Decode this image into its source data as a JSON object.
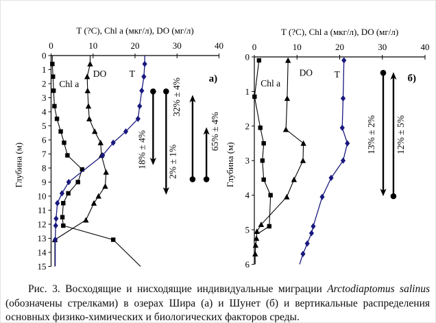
{
  "figure": {
    "caption": {
      "parts": [
        {
          "text": "Рис. 3. Восходящие и нисходящие индивидуальные миграции ",
          "italic": false
        },
        {
          "text": "Arctodiaptomus salinus",
          "italic": true
        },
        {
          "text": " (обозначены стрелками) в озерах Шира (а) и Шунет (б) и вертикальные распределения основных физико-химических и биологических факторов среды.",
          "italic": false
        }
      ]
    }
  },
  "chart_data": [
    {
      "type": "line",
      "panel": "a",
      "panel_label": {
        "text": "а)",
        "x": 38.6,
        "depth": 1.85
      },
      "title": "Т (?С), Chl a (мкг/л), DO (мг/л)",
      "ylabel": "Глубина (м)",
      "xlim": [
        0,
        40
      ],
      "xticks": [
        0,
        10,
        20,
        30,
        40
      ],
      "ylim": [
        0,
        15
      ],
      "yticks": [
        0,
        1,
        2,
        3,
        4,
        5,
        6,
        7,
        8,
        9,
        10,
        11,
        12,
        13,
        14,
        15
      ],
      "point_format": "[depth_m, value]",
      "series": [
        {
          "name": "Chl a",
          "marker": "square",
          "color": "#000000",
          "label_x": 4.3,
          "label_depth": 2.25,
          "lead": [
            [
              0,
              0.3
            ]
          ],
          "points": [
            [
              0.6,
              0.3
            ],
            [
              1.5,
              0.45
            ],
            [
              2.5,
              0.6
            ],
            [
              3.6,
              0.8
            ],
            [
              4.5,
              1.4
            ],
            [
              5.4,
              2.3
            ],
            [
              6.2,
              3.1
            ],
            [
              7.1,
              3.9
            ],
            [
              8.1,
              7.4
            ],
            [
              9.0,
              6.4
            ],
            [
              9.8,
              4.1
            ],
            [
              10.5,
              2.9
            ],
            [
              11.5,
              2.7
            ],
            [
              12.1,
              2.9
            ],
            [
              13.1,
              14.8
            ]
          ],
          "tail": [
            [
              15,
              21.3
            ]
          ]
        },
        {
          "name": "DO",
          "marker": "triangle",
          "color": "#000000",
          "label_x": 11.6,
          "label_depth": 1.5,
          "lead": [
            [
              0,
              9.3
            ]
          ],
          "points": [
            [
              0.6,
              9.3
            ],
            [
              1.5,
              8.6
            ],
            [
              2.5,
              8.7
            ],
            [
              3.6,
              8.9
            ],
            [
              4.5,
              9.1
            ],
            [
              5.4,
              10.4
            ],
            [
              6.2,
              11.8
            ],
            [
              7.1,
              12.0
            ],
            [
              8.3,
              13.1
            ],
            [
              9.3,
              12.9
            ],
            [
              10.0,
              11.3
            ],
            [
              10.5,
              10.2
            ],
            [
              11.7,
              8.3
            ],
            [
              13.1,
              0.9
            ]
          ],
          "tail": [
            [
              15,
              0.9
            ]
          ]
        },
        {
          "name": "T",
          "marker": "diamond",
          "color": "#18187e",
          "label_x": 19.3,
          "label_depth": 1.5,
          "lead": [
            [
              0,
              22.3
            ]
          ],
          "points": [
            [
              0.6,
              22.3
            ],
            [
              1.5,
              22.1
            ],
            [
              2.5,
              21.6
            ],
            [
              3.6,
              21.1
            ],
            [
              4.5,
              20.7
            ],
            [
              5.4,
              17.8
            ],
            [
              6.2,
              14.8
            ],
            [
              7.1,
              12.3
            ],
            [
              9.0,
              4.2
            ],
            [
              9.8,
              2.6
            ],
            [
              10.5,
              1.5
            ],
            [
              11.6,
              1.2
            ],
            [
              12.1,
              1.1
            ],
            [
              13.1,
              1.0
            ]
          ],
          "tail": [
            [
              15,
              1.0
            ]
          ]
        }
      ],
      "arrows": [
        {
          "label": "18% ± 4%",
          "direction": "down",
          "x_value": 24.3,
          "depth_start": 2.55,
          "depth_end": 7.8,
          "label_side": "left",
          "label_depth": 6.7
        },
        {
          "label": "2% ± 1%",
          "direction": "down",
          "x_value": 27.4,
          "depth_start": 2.55,
          "depth_end": 9.9,
          "label_side": "right",
          "label_depth": 7.55
        },
        {
          "label": "32% ± 4%",
          "direction": "up",
          "x_value": 33.7,
          "depth_start": 8.8,
          "depth_end": 2.8,
          "label_side": "left",
          "label_depth": 2.95
        },
        {
          "label": "65% ± 4%",
          "direction": "up",
          "x_value": 37.0,
          "depth_start": 8.8,
          "depth_end": 5.1,
          "label_side": "right",
          "label_depth": 5.4
        }
      ]
    },
    {
      "type": "line",
      "panel": "b",
      "panel_label": {
        "text": "б)",
        "x": 36.9,
        "depth": 0.7
      },
      "title": "Т (?С), Chl a (мкг/л), DO (мг/л)",
      "ylabel": "Глубина (м)",
      "xlim": [
        0,
        40
      ],
      "xticks": [
        0,
        10,
        20,
        30,
        40
      ],
      "ylim": [
        0,
        6
      ],
      "yticks": [
        0,
        1,
        2,
        3,
        4,
        5,
        6
      ],
      "point_format": "[depth_m, value]",
      "series": [
        {
          "name": "Chl a",
          "marker": "square",
          "color": "#000000",
          "label_x": 3.8,
          "label_depth": 0.85,
          "lead": [],
          "points": [
            [
              0.1,
              1.1
            ],
            [
              1.15,
              0.05
            ],
            [
              2.05,
              1.4
            ],
            [
              2.5,
              2.2
            ],
            [
              3.0,
              1.9
            ],
            [
              3.55,
              2.2
            ],
            [
              4.0,
              3.8
            ],
            [
              4.9,
              3.5
            ]
          ],
          "tail": [
            [
              5.1,
              1.0
            ]
          ]
        },
        {
          "name": "DO",
          "marker": "triangle",
          "color": "#000000",
          "label_x": 12.1,
          "label_depth": 0.55,
          "lead": [],
          "points": [
            [
              0.1,
              7.9
            ],
            [
              1.2,
              7.7
            ],
            [
              2.1,
              7.4
            ],
            [
              2.5,
              11.5
            ],
            [
              3.0,
              11.4
            ],
            [
              3.55,
              9.3
            ],
            [
              4.05,
              7.6
            ],
            [
              4.85,
              1.6
            ],
            [
              5.05,
              0.6
            ],
            [
              5.25,
              0.5
            ],
            [
              5.45,
              0.3
            ],
            [
              5.7,
              0.2
            ]
          ],
          "tail": [
            [
              6.0,
              0.2
            ]
          ]
        },
        {
          "name": "T",
          "marker": "diamond",
          "color": "#18187e",
          "label_x": 19.4,
          "label_depth": 0.6,
          "lead": [],
          "points": [
            [
              0.1,
              21.0
            ],
            [
              1.2,
              20.8
            ],
            [
              2.05,
              20.6
            ],
            [
              2.5,
              21.8
            ],
            [
              3.0,
              20.8
            ],
            [
              3.5,
              18.0
            ],
            [
              4.05,
              15.9
            ],
            [
              4.9,
              13.8
            ],
            [
              5.1,
              13.4
            ],
            [
              5.4,
              12.4
            ],
            [
              5.7,
              11.4
            ]
          ],
          "tail": [
            [
              6.0,
              10.6
            ]
          ]
        }
      ],
      "arrows": [
        {
          "label": "13% ± 2%",
          "direction": "down",
          "x_value": 30.2,
          "depth_start": 0.46,
          "depth_end": 4.03,
          "label_side": "left",
          "label_depth": 2.25
        },
        {
          "label": "12% ± 5%",
          "direction": "up",
          "x_value": 32.6,
          "depth_start": 4.03,
          "depth_end": 0.44,
          "label_side": "right",
          "label_depth": 2.25
        }
      ]
    }
  ]
}
